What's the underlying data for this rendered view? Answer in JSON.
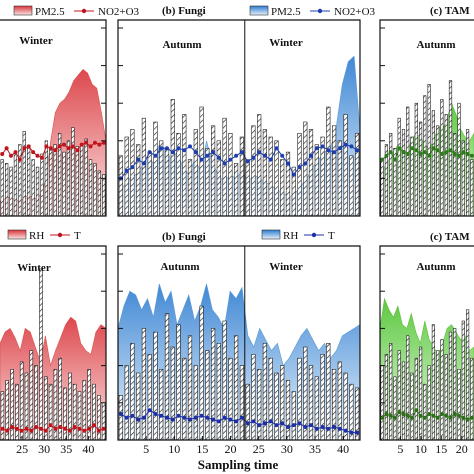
{
  "chart_data": [
    {
      "id": "top-left",
      "type": "bar",
      "title": "",
      "legend": [
        "PM2.5",
        "NO2+O3"
      ],
      "legend_placement": "top",
      "season_labels": [
        "Winter"
      ],
      "area_series": {
        "name": "PM2.5",
        "color": "#d9534f",
        "values": [
          8,
          9,
          10,
          9,
          8,
          9,
          11,
          10,
          9,
          12,
          20,
          40,
          55,
          60,
          62,
          66,
          72,
          75,
          78,
          76,
          70,
          68,
          55,
          40
        ]
      },
      "bars": {
        "values": [
          30,
          28,
          26,
          34,
          38,
          45,
          36,
          30,
          26,
          33,
          40,
          35,
          38,
          44,
          34,
          40,
          47,
          37,
          38,
          41,
          30,
          28,
          24,
          22
        ]
      },
      "line_series": {
        "name": "NO2+O3",
        "color": "#c0141c",
        "values": [
          33,
          36,
          32,
          34,
          30,
          36,
          37,
          34,
          32,
          31,
          37,
          36,
          35,
          37,
          38,
          36,
          37,
          35,
          38,
          39,
          37,
          39,
          38,
          39
        ]
      },
      "ylim": [
        0,
        100
      ],
      "xticks": [],
      "divider": null
    },
    {
      "id": "top-middle",
      "type": "bar",
      "title": "(b) Fungi",
      "legend": [
        "PM2.5",
        "NO2+O3"
      ],
      "legend_placement": "top-right",
      "season_labels": [
        "Autunm",
        "Winter"
      ],
      "area_series": {
        "name": "PM2.5",
        "color": "#5b9bd5",
        "values": [
          10,
          16,
          20,
          22,
          26,
          32,
          28,
          38,
          36,
          30,
          34,
          26,
          22,
          30,
          24,
          40,
          28,
          22,
          18,
          22,
          20,
          24,
          18,
          22,
          20,
          18,
          16,
          14,
          12,
          10,
          12,
          16,
          20,
          26,
          30,
          34,
          36,
          48,
          70,
          82,
          85,
          46
        ]
      },
      "bars": {
        "values": [
          32,
          42,
          46,
          38,
          52,
          34,
          50,
          40,
          36,
          62,
          44,
          54,
          30,
          46,
          58,
          36,
          48,
          40,
          52,
          44,
          28,
          42,
          30,
          48,
          54,
          46,
          42,
          40,
          30,
          34,
          26,
          44,
          50,
          46,
          38,
          42,
          58,
          48,
          40,
          54,
          32,
          44
        ]
      },
      "line_series": {
        "name": "NO2+O3",
        "color": "#1f3fb0",
        "values": [
          20,
          24,
          26,
          30,
          28,
          34,
          32,
          36,
          36,
          34,
          36,
          35,
          37,
          34,
          30,
          32,
          34,
          31,
          28,
          30,
          32,
          34,
          29,
          31,
          34,
          32,
          30,
          36,
          32,
          28,
          22,
          26,
          28,
          32,
          36,
          37,
          35,
          34,
          36,
          38,
          37,
          35
        ]
      },
      "ylim": [
        0,
        100
      ],
      "xticks": [],
      "divider": 22
    },
    {
      "id": "top-right",
      "type": "bar",
      "title": "(c) TAM",
      "legend": [],
      "legend_placement": "top",
      "season_labels": [
        "Autunm"
      ],
      "area_series": {
        "name": "",
        "color": "#5fbf3a",
        "values": [
          22,
          26,
          30,
          34,
          38,
          36,
          34,
          40,
          44,
          42,
          38,
          36,
          40,
          48,
          46,
          52,
          60,
          54,
          46,
          42,
          40,
          44
        ]
      },
      "bars": {
        "values": [
          30,
          38,
          44,
          36,
          52,
          46,
          58,
          42,
          60,
          50,
          64,
          70,
          56,
          48,
          62,
          54,
          72,
          44,
          60,
          40,
          46,
          30
        ]
      },
      "line_series": {
        "name": "",
        "color": "#2f7a1e",
        "values": [
          30,
          32,
          34,
          30,
          36,
          34,
          33,
          36,
          35,
          33,
          34,
          32,
          36,
          35,
          33,
          34,
          35,
          33,
          32,
          34,
          33,
          32
        ]
      },
      "ylim": [
        0,
        100
      ],
      "xticks": [],
      "divider": null
    },
    {
      "id": "bottom-left",
      "type": "bar",
      "title": "",
      "legend": [
        "RH",
        "T"
      ],
      "legend_placement": "top",
      "season_labels": [
        "Winter"
      ],
      "area_series": {
        "name": "RH",
        "color": "#d9534f",
        "values": [
          52,
          58,
          60,
          55,
          48,
          60,
          58,
          50,
          42,
          56,
          40,
          48,
          55,
          62,
          66,
          64,
          52,
          48,
          46,
          58,
          62,
          60
        ]
      },
      "bars": {
        "values": [
          26,
          32,
          38,
          30,
          42,
          36,
          48,
          40,
          92,
          34,
          30,
          38,
          44,
          28,
          36,
          30,
          26,
          32,
          38,
          30,
          24,
          20
        ]
      },
      "line_series": {
        "name": "T",
        "color": "#c0141c",
        "values": [
          6,
          5,
          7,
          6,
          5,
          6,
          5,
          7,
          6,
          5,
          8,
          6,
          7,
          6,
          5,
          7,
          6,
          5,
          6,
          8,
          5,
          6
        ]
      },
      "ylim": [
        0,
        100
      ],
      "xticks": [
        "25",
        "30",
        "35",
        "40"
      ],
      "divider": null
    },
    {
      "id": "bottom-middle",
      "type": "bar",
      "title": "(b) Fungi",
      "legend": [
        "RH",
        "T"
      ],
      "legend_placement": "top-right",
      "season_labels": [
        "Autunm",
        "Winter"
      ],
      "area_series": {
        "name": "RH",
        "color": "#5b9bd5",
        "values": [
          60,
          72,
          80,
          78,
          70,
          76,
          66,
          84,
          74,
          80,
          62,
          70,
          78,
          64,
          72,
          84,
          70,
          66,
          60,
          80,
          76,
          82,
          56,
          50,
          60,
          54,
          48,
          52,
          40,
          44,
          50,
          56,
          60,
          54,
          48,
          52,
          44,
          48,
          56,
          58,
          60,
          62
        ]
      },
      "bars": {
        "values": [
          24,
          40,
          52,
          36,
          60,
          46,
          58,
          38,
          68,
          50,
          62,
          44,
          56,
          40,
          72,
          48,
          60,
          52,
          64,
          44,
          56,
          40,
          30,
          46,
          38,
          52,
          44,
          36,
          40,
          32,
          26,
          44,
          50,
          40,
          34,
          46,
          52,
          38,
          42,
          36,
          30,
          28
        ]
      },
      "line_series": {
        "name": "T",
        "color": "#1f2fa8",
        "values": [
          14,
          12,
          13,
          11,
          12,
          16,
          14,
          13,
          12,
          11,
          13,
          12,
          11,
          12,
          13,
          12,
          11,
          10,
          12,
          11,
          10,
          12,
          9,
          10,
          8,
          9,
          10,
          8,
          9,
          7,
          8,
          9,
          7,
          8,
          6,
          7,
          6,
          7,
          6,
          5,
          4,
          4
        ]
      },
      "ylim": [
        0,
        100
      ],
      "xticks": [
        "5",
        "10",
        "15",
        "20",
        "25",
        "30",
        "35",
        "40"
      ],
      "divider": 22
    },
    {
      "id": "bottom-right",
      "type": "bar",
      "title": "(c) TAM",
      "legend": [],
      "legend_placement": "top",
      "season_labels": [
        "Autunm"
      ],
      "area_series": {
        "name": "",
        "color": "#5fbf3a",
        "values": [
          60,
          76,
          70,
          66,
          72,
          62,
          60,
          68,
          58,
          52,
          64,
          54,
          50,
          46,
          52,
          60,
          62,
          58,
          54,
          56,
          48,
          50
        ]
      },
      "bars": {
        "values": [
          40,
          46,
          52,
          34,
          48,
          42,
          56,
          36,
          44,
          50,
          30,
          40,
          62,
          48,
          54,
          46,
          58,
          60,
          38,
          64,
          70,
          44
        ]
      },
      "line_series": {
        "name": "",
        "color": "#2f6e1a",
        "values": [
          12,
          14,
          13,
          12,
          15,
          14,
          13,
          12,
          16,
          13,
          12,
          14,
          13,
          12,
          14,
          13,
          12,
          14,
          13,
          12,
          11,
          12
        ]
      },
      "ylim": [
        0,
        100
      ],
      "xticks": [
        "5",
        "10",
        "15",
        "20"
      ],
      "divider": null
    }
  ],
  "xlabel": "Sampling time"
}
